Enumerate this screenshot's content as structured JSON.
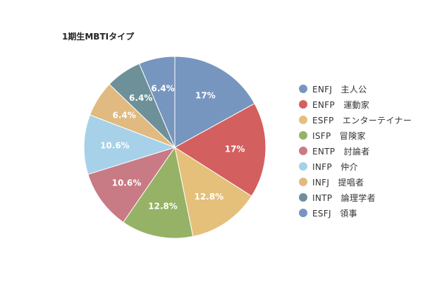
{
  "chart_data": {
    "type": "pie",
    "title": "1期生MBTIタイプ",
    "slices": [
      {
        "label": "ENFJ　主人公",
        "value": 17,
        "value_label": "17%",
        "color": "#7696c0"
      },
      {
        "label": "ENFP　運動家",
        "value": 17,
        "value_label": "17%",
        "color": "#d45f5f"
      },
      {
        "label": "ESFP　エンターテイナー",
        "value": 12.8,
        "value_label": "12.8%",
        "color": "#e5c07a"
      },
      {
        "label": "ISFP　冒険家",
        "value": 12.8,
        "value_label": "12.8%",
        "color": "#96b266"
      },
      {
        "label": "ENTP　討論者",
        "value": 10.6,
        "value_label": "10.6%",
        "color": "#c87a85"
      },
      {
        "label": "INFP　仲介",
        "value": 10.6,
        "value_label": "10.6%",
        "color": "#a6d1e8"
      },
      {
        "label": "INFJ　提唱者",
        "value": 6.4,
        "value_label": "6.4%",
        "color": "#e0ba80"
      },
      {
        "label": "INTP　論理学者",
        "value": 6.4,
        "value_label": "6.4%",
        "color": "#6e9098"
      },
      {
        "label": "ESFJ　領事",
        "value": 6.4,
        "value_label": "6.4%",
        "color": "#7696c0"
      }
    ],
    "legend_position": "right"
  }
}
